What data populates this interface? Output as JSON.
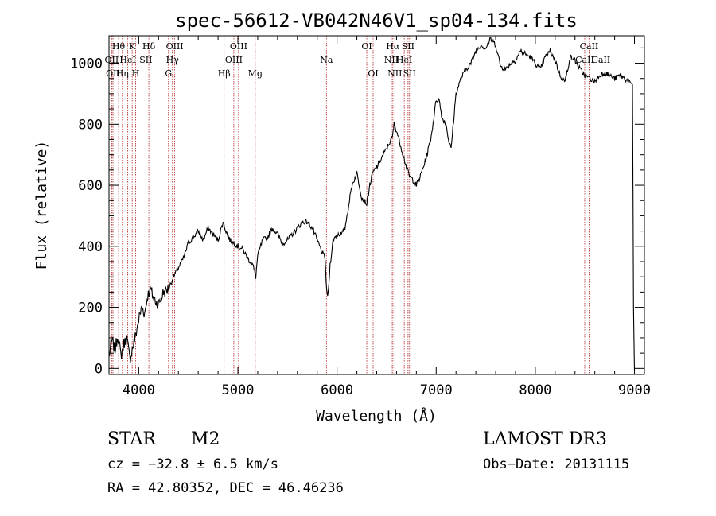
{
  "chart_data": {
    "type": "line",
    "title": "spec-56612-VB042N46V1_sp04-134.fits",
    "xlabel": "Wavelength (Å)",
    "ylabel": "Flux (relative)",
    "xlim": [
      3700,
      9100
    ],
    "ylim": [
      -20,
      1090
    ],
    "x_ticks": [
      4000,
      5000,
      6000,
      7000,
      8000,
      9000
    ],
    "x_tick_labels": [
      "4000",
      "5000",
      "6000",
      "7000",
      "8000",
      "9000"
    ],
    "y_ticks": [
      0,
      200,
      400,
      600,
      800,
      1000
    ],
    "y_tick_labels": [
      "0",
      "200",
      "400",
      "600",
      "800",
      "1000"
    ],
    "series": [
      {
        "name": "spectrum",
        "x": [
          3700,
          3730,
          3760,
          3790,
          3820,
          3850,
          3880,
          3910,
          3940,
          3970,
          4000,
          4030,
          4060,
          4090,
          4120,
          4150,
          4200,
          4250,
          4300,
          4350,
          4400,
          4450,
          4500,
          4550,
          4600,
          4650,
          4700,
          4750,
          4800,
          4850,
          4880,
          4920,
          4960,
          5000,
          5050,
          5100,
          5150,
          5180,
          5200,
          5250,
          5300,
          5350,
          5400,
          5450,
          5500,
          5550,
          5600,
          5650,
          5700,
          5750,
          5800,
          5850,
          5880,
          5895,
          5910,
          5930,
          5960,
          6000,
          6050,
          6080,
          6100,
          6150,
          6200,
          6250,
          6300,
          6330,
          6360,
          6400,
          6450,
          6500,
          6530,
          6560,
          6575,
          6600,
          6650,
          6700,
          6730,
          6760,
          6800,
          6830,
          6860,
          6900,
          6950,
          7000,
          7030,
          7060,
          7100,
          7130,
          7150,
          7200,
          7250,
          7300,
          7350,
          7400,
          7450,
          7500,
          7550,
          7600,
          7650,
          7700,
          7750,
          7800,
          7850,
          7900,
          7950,
          8000,
          8050,
          8100,
          8150,
          8200,
          8230,
          8250,
          8300,
          8350,
          8400,
          8450,
          8500,
          8550,
          8600,
          8650,
          8700,
          8750,
          8800,
          8850,
          8900,
          8950,
          8980,
          8990,
          9000
        ],
        "values": [
          40,
          90,
          60,
          110,
          40,
          80,
          100,
          30,
          70,
          110,
          160,
          200,
          180,
          240,
          260,
          230,
          210,
          250,
          260,
          300,
          330,
          360,
          410,
          430,
          450,
          420,
          460,
          440,
          420,
          480,
          450,
          420,
          410,
          400,
          390,
          360,
          340,
          300,
          370,
          420,
          430,
          460,
          440,
          410,
          420,
          440,
          460,
          480,
          480,
          460,
          420,
          380,
          360,
          250,
          240,
          340,
          420,
          440,
          440,
          460,
          500,
          600,
          640,
          560,
          540,
          600,
          640,
          660,
          690,
          720,
          740,
          760,
          800,
          780,
          720,
          660,
          630,
          620,
          600,
          620,
          650,
          690,
          760,
          880,
          880,
          820,
          800,
          740,
          720,
          900,
          950,
          980,
          1000,
          1040,
          1060,
          1050,
          1080,
          1060,
          990,
          980,
          1000,
          1010,
          1040,
          1030,
          1020,
          1000,
          980,
          1020,
          1040,
          1010,
          980,
          960,
          940,
          1020,
          1010,
          980,
          960,
          950,
          940,
          960,
          970,
          960,
          950,
          960,
          950,
          940,
          930,
          200,
          -10
        ]
      }
    ],
    "lines": [
      {
        "x": 3797,
        "label": "Hθ",
        "row": 0
      },
      {
        "x": 3835,
        "label": "Hη",
        "row": 2
      },
      {
        "x": 3889,
        "label": "HeI",
        "row": 1
      },
      {
        "x": 3934,
        "label": "K",
        "row": 0
      },
      {
        "x": 3969,
        "label": "H",
        "row": 2
      },
      {
        "x": 4102,
        "label": "Hδ",
        "row": 0
      },
      {
        "x": 4072,
        "label": "SII",
        "row": 1
      },
      {
        "x": 4300,
        "label": "G",
        "row": 2
      },
      {
        "x": 4340,
        "label": "Hγ",
        "row": 1
      },
      {
        "x": 4363,
        "label": "OIII",
        "row": 0
      },
      {
        "x": 4861,
        "label": "Hβ",
        "row": 2
      },
      {
        "x": 4959,
        "label": "OIII",
        "row": 1
      },
      {
        "x": 5007,
        "label": "OIII",
        "row": 0
      },
      {
        "x": 5175,
        "label": "Mg",
        "row": 2
      },
      {
        "x": 5893,
        "label": "Na",
        "row": 1
      },
      {
        "x": 6300,
        "label": "OI",
        "row": 0
      },
      {
        "x": 6364,
        "label": "OI",
        "row": 2
      },
      {
        "x": 6548,
        "label": "NII",
        "row": 1
      },
      {
        "x": 6563,
        "label": "Hα",
        "row": 0
      },
      {
        "x": 6583,
        "label": "NII",
        "row": 2
      },
      {
        "x": 6678,
        "label": "HeI",
        "row": 1
      },
      {
        "x": 6716,
        "label": "SII",
        "row": 0
      },
      {
        "x": 6731,
        "label": "SII",
        "row": 2
      },
      {
        "x": 3727,
        "label": "OII",
        "row": 1
      },
      {
        "x": 3740,
        "label": "OII",
        "row": 2
      },
      {
        "x": 8498,
        "label": "CaII",
        "row": 1
      },
      {
        "x": 8542,
        "label": "CaII",
        "row": 0
      },
      {
        "x": 8662,
        "label": "CaII",
        "row": 1
      }
    ]
  },
  "info": {
    "object_type": "STAR",
    "subclass": "M2",
    "survey": "LAMOST DR3",
    "cz": "cz = −32.8 ± 6.5 km/s",
    "obs_date": "Obs−Date: 20131115",
    "coords": "RA =  42.80352, DEC =  46.46236"
  },
  "colors": {
    "axis": "#000000",
    "line": "#000000",
    "marker_line": "#b22222",
    "background": "#ffffff"
  }
}
